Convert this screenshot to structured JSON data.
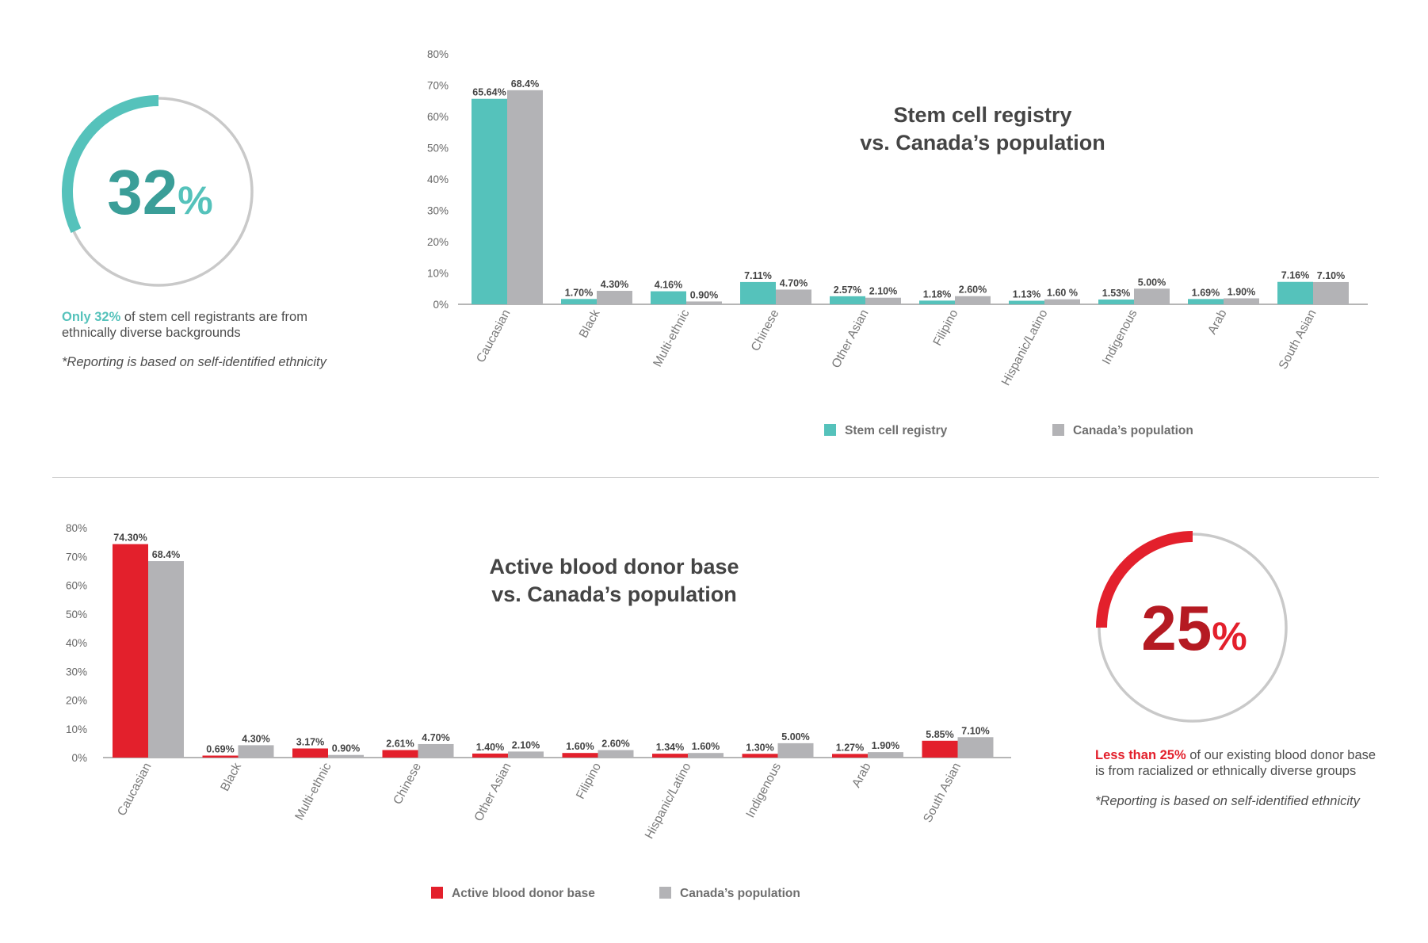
{
  "colors": {
    "teal": "#55c2bb",
    "teal_dark": "#3a9e98",
    "gray": "#b3b3b6",
    "red": "#e3202c",
    "red_dark": "#b51a22",
    "ring_gray": "#c9c9c9",
    "axis_text": "#666666",
    "label_text": "#444444"
  },
  "stem_panel": {
    "ring_value": 32,
    "ring_number": "32",
    "ring_unit": "%",
    "highlight": "Only 32%",
    "text_rest_line1": " of stem cell registrants are from",
    "text_line2": "ethnically diverse backgrounds",
    "note": "*Reporting is based on self-identified ethnicity"
  },
  "blood_panel": {
    "ring_value": 25,
    "ring_number": "25",
    "ring_unit": "%",
    "highlight": "Less than 25%",
    "text_rest_line1": " of our existing blood donor base",
    "text_line2": "is from racialized or ethnically diverse groups",
    "note": "*Reporting is based on self-identified ethnicity"
  },
  "chart_data": [
    {
      "type": "bar",
      "title_lines": [
        "Stem cell registry",
        "vs. Canada’s population"
      ],
      "categories": [
        "Caucasian",
        "Black",
        "Multi-ethnic",
        "Chinese",
        "Other Asian",
        "Filipino",
        "Hispanic/Latino",
        "Indigenous",
        "Arab",
        "South Asian"
      ],
      "yticks": [
        "0%",
        "10%",
        "20%",
        "30%",
        "40%",
        "50%",
        "60%",
        "70%",
        "80%"
      ],
      "ylim": [
        0,
        80
      ],
      "legend_placement": "bottom",
      "series": [
        {
          "name": "Stem cell registry",
          "color": "#55c2bb",
          "values": [
            65.64,
            1.7,
            4.16,
            7.11,
            2.57,
            1.18,
            1.13,
            1.53,
            1.69,
            7.16
          ],
          "labels": [
            "65.64%",
            "1.70%",
            "4.16%",
            "7.11%",
            "2.57%",
            "1.18%",
            "1.13%",
            "1.53%",
            "1.69%",
            "7.16%"
          ]
        },
        {
          "name": "Canada’s population",
          "color": "#b3b3b6",
          "values": [
            68.4,
            4.3,
            0.9,
            4.7,
            2.1,
            2.6,
            1.6,
            5.0,
            1.9,
            7.1
          ],
          "labels": [
            "68.4%",
            "4.30%",
            "0.90%",
            "4.70%",
            "2.10%",
            "2.60%",
            "1.60 %",
            "5.00%",
            "1.90%",
            "7.10%"
          ]
        }
      ]
    },
    {
      "type": "bar",
      "title_lines": [
        "Active blood donor base",
        "vs. Canada’s population"
      ],
      "categories": [
        "Caucasian",
        "Black",
        "Multi-ethnic",
        "Chinese",
        "Other Asian",
        "Filipino",
        "Hispanic/Latino",
        "Indigenous",
        "Arab",
        "South Asian"
      ],
      "yticks": [
        "0%",
        "10%",
        "20%",
        "30%",
        "40%",
        "50%",
        "60%",
        "70%",
        "80%"
      ],
      "ylim": [
        0,
        80
      ],
      "legend_placement": "bottom",
      "series": [
        {
          "name": "Active blood donor base",
          "color": "#e3202c",
          "values": [
            74.3,
            0.69,
            3.17,
            2.61,
            1.4,
            1.6,
            1.34,
            1.3,
            1.27,
            5.85
          ],
          "labels": [
            "74.30%",
            "0.69%",
            "3.17%",
            "2.61%",
            "1.40%",
            "1.60%",
            "1.34%",
            "1.30%",
            "1.27%",
            "5.85%"
          ]
        },
        {
          "name": "Canada’s population",
          "color": "#b3b3b6",
          "values": [
            68.4,
            4.3,
            0.9,
            4.7,
            2.1,
            2.6,
            1.6,
            5.0,
            1.9,
            7.1
          ],
          "labels": [
            "68.4%",
            "4.30%",
            "0.90%",
            "4.70%",
            "2.10%",
            "2.60%",
            "1.60%",
            "5.00%",
            "1.90%",
            "7.10%"
          ]
        }
      ]
    }
  ]
}
